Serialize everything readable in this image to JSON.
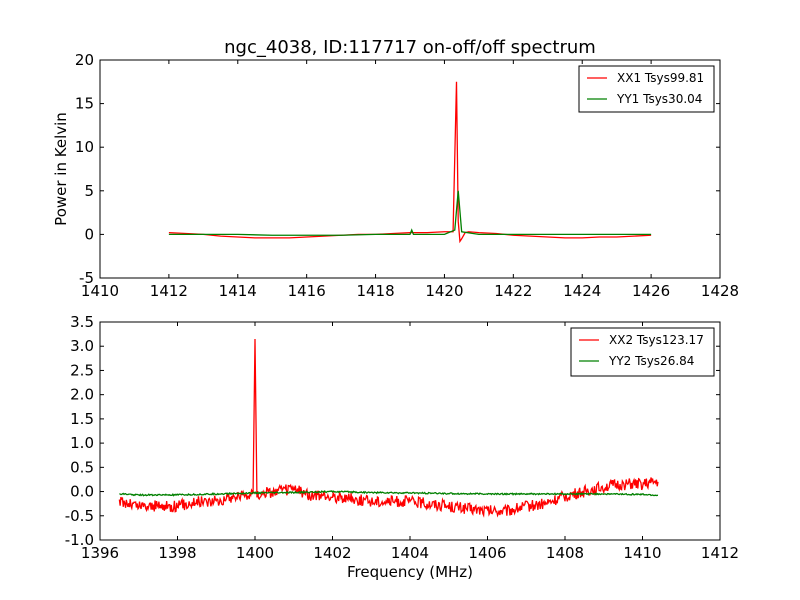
{
  "figure": {
    "title": "ngc_4038, ID:117717 on-off/off spectrum",
    "ylabel": "Power in Kelvin",
    "xlabel": "Frequency (MHz)"
  },
  "chart_data": [
    {
      "type": "line",
      "title": "ngc_4038, ID:117717 on-off/off spectrum",
      "xlabel": "",
      "ylabel": "Power in Kelvin",
      "xlim": [
        1410,
        1428
      ],
      "ylim": [
        -5,
        20
      ],
      "xticks": [
        1410,
        1412,
        1414,
        1416,
        1418,
        1420,
        1422,
        1424,
        1426,
        1428
      ],
      "yticks": [
        -5,
        0,
        5,
        10,
        15,
        20
      ],
      "grid": false,
      "legend_position": "top-right",
      "series": [
        {
          "name": "XX1 Tsys99.81",
          "color": "#ff0000",
          "x": [
            1412.0,
            1412.5,
            1413.0,
            1413.5,
            1414.0,
            1414.5,
            1415.0,
            1415.5,
            1416.0,
            1416.5,
            1417.0,
            1417.5,
            1418.0,
            1418.5,
            1419.0,
            1419.5,
            1420.0,
            1420.25,
            1420.35,
            1420.4,
            1420.45,
            1420.5,
            1420.6,
            1420.7,
            1421.0,
            1421.5,
            1422.0,
            1422.5,
            1423.0,
            1423.5,
            1424.0,
            1424.5,
            1425.0,
            1425.5,
            1426.0
          ],
          "y": [
            0.2,
            0.1,
            0.0,
            -0.2,
            -0.3,
            -0.4,
            -0.4,
            -0.4,
            -0.3,
            -0.2,
            -0.1,
            0.0,
            0.0,
            0.1,
            0.2,
            0.2,
            0.3,
            0.3,
            17.5,
            1.5,
            -0.8,
            -0.5,
            0.2,
            0.3,
            0.2,
            0.1,
            -0.1,
            -0.2,
            -0.3,
            -0.4,
            -0.4,
            -0.3,
            -0.3,
            -0.2,
            -0.1
          ]
        },
        {
          "name": "YY1 Tsys30.04",
          "color": "#008000",
          "x": [
            1412.0,
            1413.0,
            1414.0,
            1415.0,
            1416.0,
            1417.0,
            1418.0,
            1419.0,
            1419.05,
            1419.1,
            1420.0,
            1420.3,
            1420.4,
            1420.5,
            1421.0,
            1422.0,
            1423.0,
            1424.0,
            1425.0,
            1426.0
          ],
          "y": [
            0.0,
            0.0,
            0.0,
            -0.1,
            -0.1,
            -0.1,
            0.0,
            0.0,
            0.5,
            0.0,
            0.0,
            0.5,
            5.0,
            0.3,
            0.0,
            0.0,
            0.0,
            0.0,
            0.0,
            0.0
          ]
        }
      ]
    },
    {
      "type": "line",
      "title": "",
      "xlabel": "Frequency (MHz)",
      "ylabel": "",
      "xlim": [
        1396,
        1412
      ],
      "ylim": [
        -1.0,
        3.5
      ],
      "xticks": [
        1396,
        1398,
        1400,
        1402,
        1404,
        1406,
        1408,
        1410,
        1412
      ],
      "yticks": [
        -1.0,
        -0.5,
        0.0,
        0.5,
        1.0,
        1.5,
        2.0,
        2.5,
        3.0,
        3.5
      ],
      "grid": false,
      "legend_position": "top-right",
      "series": [
        {
          "name": "XX2 Tsys123.17",
          "color": "#ff0000",
          "x": [
            1396.5,
            1397.0,
            1397.5,
            1398.0,
            1398.5,
            1399.0,
            1399.5,
            1399.95,
            1400.0,
            1400.05,
            1400.5,
            1401.0,
            1401.5,
            1402.0,
            1402.5,
            1403.0,
            1403.5,
            1404.0,
            1404.5,
            1405.0,
            1405.5,
            1406.0,
            1406.5,
            1407.0,
            1407.5,
            1408.0,
            1408.5,
            1409.0,
            1409.5,
            1410.0,
            1410.4
          ],
          "y": [
            -0.2,
            -0.3,
            -0.3,
            -0.3,
            -0.2,
            -0.2,
            -0.1,
            -0.05,
            3.15,
            -0.05,
            0.0,
            0.05,
            -0.1,
            -0.1,
            -0.15,
            -0.2,
            -0.2,
            -0.2,
            -0.25,
            -0.3,
            -0.35,
            -0.4,
            -0.4,
            -0.3,
            -0.25,
            -0.1,
            0.0,
            0.1,
            0.15,
            0.15,
            0.2
          ],
          "noisy": true
        },
        {
          "name": "YY2 Tsys26.84",
          "color": "#008000",
          "x": [
            1396.5,
            1397.0,
            1398.0,
            1399.0,
            1400.0,
            1401.0,
            1402.0,
            1403.0,
            1404.0,
            1405.0,
            1406.0,
            1407.0,
            1408.0,
            1409.0,
            1410.0,
            1410.4
          ],
          "y": [
            -0.05,
            -0.07,
            -0.07,
            -0.05,
            -0.03,
            -0.02,
            0.0,
            -0.02,
            -0.03,
            -0.04,
            -0.05,
            -0.05,
            -0.05,
            -0.05,
            -0.06,
            -0.08
          ],
          "noisy": true
        }
      ]
    }
  ]
}
